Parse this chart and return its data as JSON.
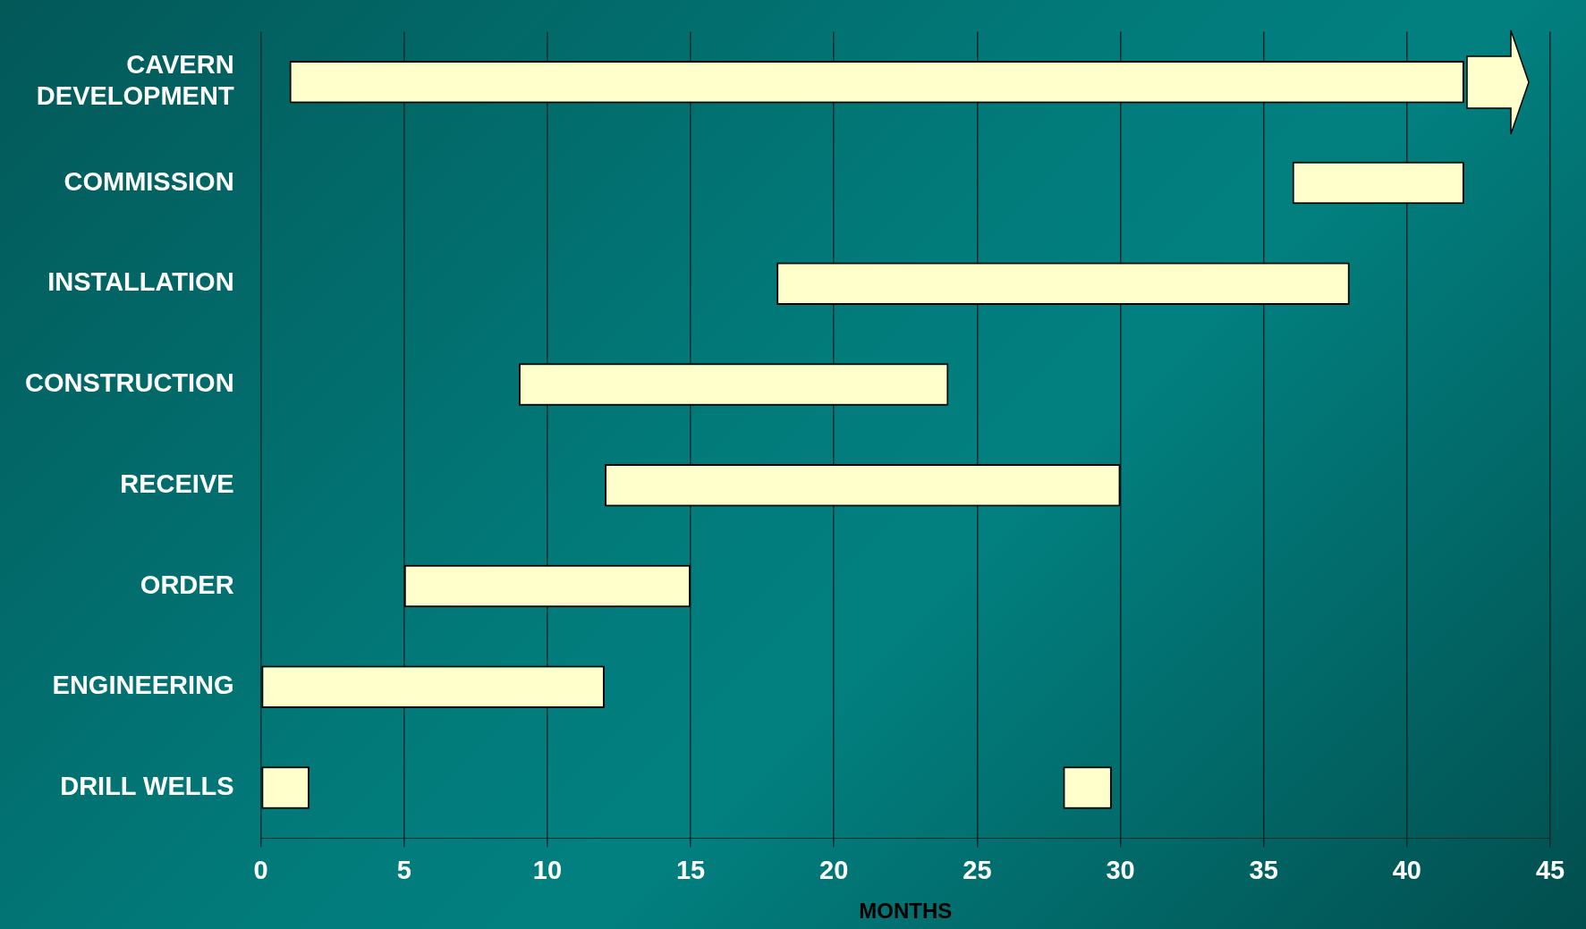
{
  "chart_data": {
    "type": "bar",
    "orientation": "horizontal",
    "xlabel": "MONTHS",
    "categories": [
      "CAVERN DEVELOPMENT",
      "COMMISSION",
      "INSTALLATION",
      "CONSTRUCTION",
      "RECEIVE",
      "ORDER",
      "ENGINEERING",
      "DRILL WELLS"
    ],
    "series": [
      {
        "color": "#ffffcc",
        "base": [
          1,
          36,
          18,
          9,
          12,
          5,
          0,
          0
        ],
        "values": [
          41,
          6,
          20,
          15,
          18,
          10,
          12,
          1.7
        ]
      },
      {
        "color": "#ffffcc",
        "base": [
          null,
          null,
          null,
          null,
          null,
          null,
          null,
          28
        ],
        "values": [
          null,
          null,
          null,
          null,
          null,
          null,
          null,
          1.7
        ]
      }
    ],
    "xlim": [
      0,
      45
    ],
    "xticks": [
      0,
      5,
      10,
      15,
      20,
      25,
      30,
      35,
      40,
      45
    ],
    "grid": "x",
    "legend": false
  }
}
